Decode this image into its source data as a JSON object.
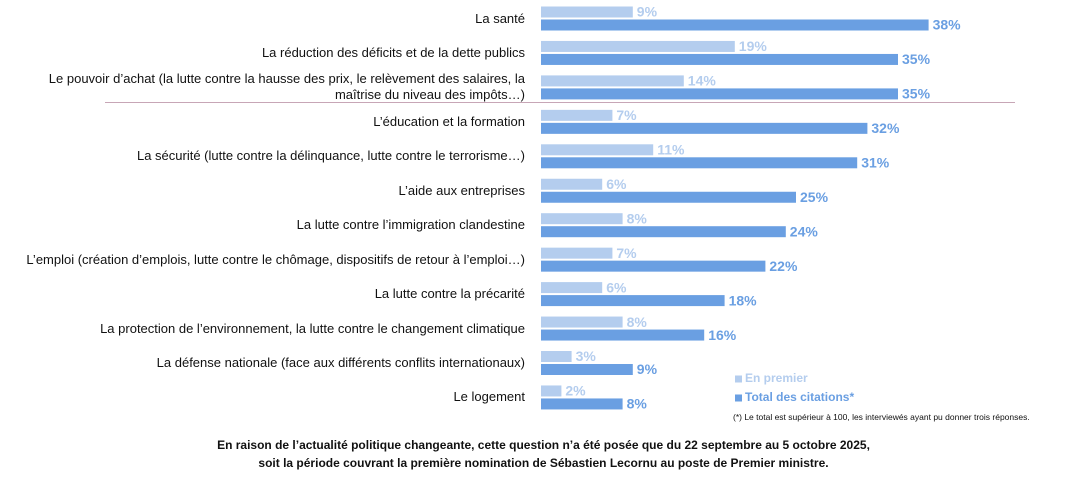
{
  "chart_data": {
    "type": "bar",
    "orientation": "horizontal",
    "categories": [
      "La santé",
      "La réduction des déficits et de la dette publics",
      "Le pouvoir d’achat (la lutte contre la hausse des prix, le relèvement des salaires, la maîtrise du niveau des impôts…)",
      "L’éducation et la formation",
      "La sécurité (lutte contre la délinquance, lutte contre le terrorisme…)",
      "L’aide aux entreprises",
      "La lutte contre l’immigration clandestine",
      "L’emploi (création d’emplois, lutte contre le chômage, dispositifs de retour à l’emploi…)",
      "La lutte contre la précarité",
      "La protection de l’environnement, la lutte contre le changement climatique",
      "La défense nationale (face aux différents conflits internationaux)",
      "Le logement"
    ],
    "series": [
      {
        "name": "En premier",
        "color": "#b4cdee",
        "values": [
          9,
          19,
          14,
          7,
          11,
          6,
          8,
          7,
          6,
          8,
          3,
          2
        ],
        "value_labels": [
          "9%",
          "19%",
          "14%",
          "7%",
          "11%",
          "6%",
          "8%",
          "7%",
          "6%",
          "8%",
          "3%",
          "2%"
        ]
      },
      {
        "name": "Total des citations*",
        "color": "#6a9fe2",
        "values": [
          38,
          35,
          35,
          32,
          31,
          25,
          24,
          22,
          18,
          16,
          9,
          8
        ],
        "value_labels": [
          "38%",
          "35%",
          "35%",
          "32%",
          "31%",
          "25%",
          "24%",
          "22%",
          "18%",
          "16%",
          "9%",
          "8%"
        ]
      }
    ],
    "legend": "bottom-right",
    "footnote": "(*) Le total est supérieur à 100, les interviewés ayant pu donner trois réponses.",
    "caption": [
      "En raison de l’actualité politique changeante, cette question n’a été posée que du 22 septembre au 5 octobre 2025,",
      "soit la période couvrant la première nomination de Sébastien Lecornu au poste de Premier ministre."
    ]
  }
}
